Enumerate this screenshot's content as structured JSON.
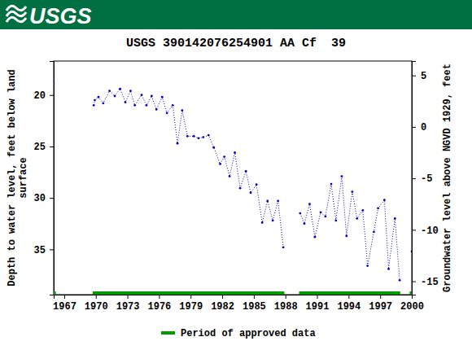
{
  "chart_data": {
    "type": "line",
    "logo_text": "USGS",
    "title": "USGS 390142076254901 AA Cf  39",
    "ylabel": [
      "Depth to water level, feet below land",
      "surface"
    ],
    "y2label": "Groundwater level above NGVD 1929, feet",
    "xlim": [
      1966,
      2000
    ],
    "xticks": [
      1967,
      1970,
      1973,
      1976,
      1979,
      1982,
      1985,
      1988,
      1991,
      1994,
      1997,
      2000
    ],
    "ylim": [
      39.4,
      16.7
    ],
    "yticks": [
      20,
      25,
      30,
      35
    ],
    "y2lim": [
      -16.3,
      6.4
    ],
    "y2ticks": [
      5,
      0,
      -5,
      -10,
      -15
    ],
    "x": [
      1966.0,
      1968.0,
      1969.8,
      1969.9,
      1970.25,
      1970.7,
      1971.3,
      1971.8,
      1972.3,
      1972.8,
      1973.3,
      1973.7,
      1974.35,
      1974.8,
      1975.3,
      1975.75,
      1976.3,
      1976.75,
      1977.3,
      1977.75,
      1978.2,
      1978.7,
      1979.3,
      1979.75,
      1980.2,
      1980.7,
      1981.2,
      1981.8,
      1982.2,
      1982.7,
      1983.2,
      1983.7,
      1984.25,
      1984.7,
      1985.25,
      1985.8,
      1986.3,
      1986.8,
      1987.3,
      1987.8,
      1988.6,
      1989.4,
      1989.8,
      1990.3,
      1990.8,
      1991.35,
      1991.8,
      1992.35,
      1992.8,
      1993.35,
      1993.8,
      1994.35,
      1994.8,
      1995.35,
      1995.8,
      1996.4,
      1996.8,
      1997.4,
      1997.8,
      1998.4,
      1998.85,
      1999.4,
      2000.0
    ],
    "series": [
      {
        "color": "#0000cc",
        "marker": "point",
        "line_style": "dotted",
        "values": [
          18.9,
          null,
          21.0,
          20.5,
          20.2,
          20.8,
          19.6,
          20.1,
          19.4,
          20.7,
          19.6,
          21.0,
          20.0,
          21.0,
          20.1,
          21.4,
          20.2,
          21.75,
          21.0,
          24.7,
          21.5,
          24.0,
          24.0,
          24.2,
          24.1,
          23.9,
          25.1,
          26.7,
          26.0,
          27.9,
          25.6,
          29.05,
          27.4,
          29.5,
          28.7,
          32.4,
          30.3,
          32.2,
          30.3,
          34.8,
          null,
          31.5,
          32.5,
          30.6,
          33.8,
          31.4,
          31.8,
          28.65,
          32.2,
          27.9,
          33.7,
          29.4,
          32.0,
          31.2,
          36.6,
          33.3,
          31.0,
          30.2,
          36.9,
          32.0,
          38.0,
          null,
          35.2
        ]
      }
    ],
    "approved_periods": {
      "name": "Period of approved data",
      "color": "#009900",
      "ranges": [
        [
          1966.0,
          1966.2
        ],
        [
          1969.7,
          1987.9
        ],
        [
          1989.3,
          1998.9
        ],
        [
          1999.8,
          2000.0
        ]
      ]
    }
  }
}
